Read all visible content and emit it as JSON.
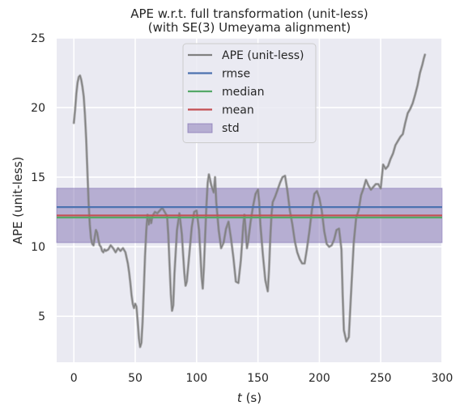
{
  "chart_data": {
    "type": "line",
    "title_line1": "APE w.r.t. full transformation (unit-less)",
    "title_line2": "(with SE(3) Umeyama alignment)",
    "xlabel_var": "t",
    "xlabel_unit": " (s)",
    "ylabel": "APE (unit-less)",
    "xlim": [
      -14,
      300
    ],
    "ylim": [
      1.7,
      25
    ],
    "xticks": [
      0,
      50,
      100,
      150,
      200,
      250,
      300
    ],
    "yticks": [
      5,
      10,
      15,
      20,
      25
    ],
    "grid": true,
    "legend_position": "top-center",
    "legend": [
      {
        "label": "APE (unit-less)",
        "kind": "line",
        "color": "#808080"
      },
      {
        "label": "rmse",
        "kind": "line",
        "color": "#4c72b0"
      },
      {
        "label": "median",
        "kind": "line",
        "color": "#55a868"
      },
      {
        "label": "mean",
        "kind": "line",
        "color": "#c44e52"
      },
      {
        "label": "std",
        "kind": "patch",
        "color": "#8172b2"
      }
    ],
    "stats": {
      "rmse": 12.85,
      "median": 12.1,
      "mean": 12.25,
      "std_low": 10.3,
      "std_high": 14.2
    },
    "series": [
      {
        "name": "APE (unit-less)",
        "color": "#808080",
        "x": [
          0,
          1,
          2,
          3,
          4,
          5,
          6,
          7,
          8,
          9,
          10,
          11,
          12,
          13,
          14,
          15,
          16,
          17,
          18,
          19,
          20,
          21,
          22,
          23,
          24,
          25,
          26,
          28,
          30,
          32,
          34,
          36,
          38,
          40,
          42,
          44,
          45,
          46,
          47,
          48,
          49,
          50,
          51,
          52,
          53,
          54,
          55,
          56,
          57,
          58,
          59,
          60,
          61,
          62,
          63,
          64,
          66,
          68,
          70,
          72,
          74,
          76,
          77,
          78,
          79,
          80,
          81,
          82,
          84,
          86,
          88,
          89,
          90,
          91,
          92,
          94,
          96,
          98,
          100,
          102,
          103,
          104,
          105,
          106,
          107,
          108,
          109,
          110,
          112,
          114,
          115,
          116,
          118,
          120,
          122,
          124,
          126,
          128,
          130,
          132,
          134,
          136,
          137,
          138,
          139,
          140,
          141,
          142,
          144,
          146,
          148,
          150,
          151,
          152,
          154,
          156,
          158,
          159,
          160,
          161,
          162,
          164,
          166,
          168,
          170,
          172,
          174,
          176,
          178,
          180,
          182,
          184,
          186,
          188,
          190,
          192,
          194,
          196,
          198,
          200,
          202,
          204,
          206,
          208,
          210,
          212,
          214,
          216,
          218,
          219,
          220,
          222,
          224,
          226,
          228,
          230,
          232,
          234,
          236,
          238,
          240,
          242,
          244,
          246,
          248,
          250,
          252,
          254,
          256,
          258,
          260,
          262,
          264,
          266,
          268,
          270,
          272,
          274,
          276,
          278,
          280,
          282,
          284,
          285,
          286
        ],
        "y": [
          18.9,
          19.8,
          21.0,
          21.8,
          22.2,
          22.3,
          22.0,
          21.5,
          20.8,
          19.5,
          17.8,
          15.5,
          13.2,
          11.6,
          10.6,
          10.2,
          10.1,
          10.7,
          11.2,
          11.0,
          10.5,
          10.1,
          10.0,
          9.7,
          9.6,
          9.8,
          9.7,
          9.8,
          10.1,
          9.9,
          9.6,
          9.9,
          9.7,
          9.9,
          9.6,
          8.8,
          8.2,
          7.4,
          6.5,
          5.9,
          5.6,
          5.9,
          5.7,
          4.6,
          3.4,
          2.8,
          3.1,
          4.6,
          6.9,
          9.3,
          11.2,
          12.3,
          11.6,
          12.1,
          11.7,
          12.2,
          12.5,
          12.4,
          12.6,
          12.8,
          12.5,
          12.2,
          10.8,
          8.6,
          6.6,
          5.4,
          5.8,
          8.1,
          11.2,
          12.4,
          10.9,
          9.5,
          8.1,
          7.2,
          7.5,
          9.4,
          11.4,
          12.5,
          12.6,
          11.2,
          9.6,
          7.9,
          7.0,
          8.6,
          10.8,
          12.9,
          14.6,
          15.2,
          14.4,
          13.9,
          15.0,
          13.2,
          11.2,
          9.9,
          10.3,
          11.3,
          11.8,
          10.6,
          9.2,
          7.5,
          7.4,
          9.0,
          10.2,
          11.5,
          12.3,
          11.1,
          9.9,
          10.4,
          11.8,
          12.9,
          13.8,
          14.1,
          13.2,
          11.6,
          9.4,
          7.6,
          6.8,
          8.4,
          10.6,
          12.3,
          13.2,
          13.6,
          14.1,
          14.6,
          15.0,
          15.1,
          14.0,
          12.6,
          11.6,
          10.4,
          9.6,
          9.1,
          8.8,
          8.8,
          9.9,
          11.2,
          12.7,
          13.8,
          14.0,
          13.5,
          12.6,
          11.1,
          10.2,
          10.0,
          10.1,
          10.5,
          11.2,
          11.3,
          9.8,
          6.6,
          4.0,
          3.2,
          3.5,
          6.9,
          10.3,
          12.1,
          12.6,
          13.7,
          14.2,
          14.8,
          14.4,
          14.1,
          14.3,
          14.5,
          14.5,
          14.2,
          15.9,
          15.6,
          15.8,
          16.3,
          16.7,
          17.3,
          17.6,
          17.9,
          18.1,
          18.9,
          19.6,
          19.9,
          20.3,
          20.9,
          21.6,
          22.5,
          23.1,
          23.5,
          23.8
        ]
      }
    ]
  }
}
